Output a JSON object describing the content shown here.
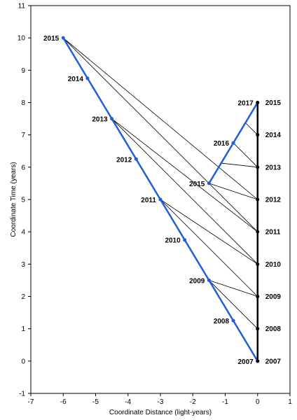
{
  "chart_data": {
    "type": "line",
    "xlabel": "Coordinate Distance (light-years)",
    "ylabel": "Coordinate Time (years)",
    "xlim": [
      -7,
      1
    ],
    "ylim": [
      -1,
      11
    ],
    "xticks": [
      -7,
      -6,
      -5,
      -4,
      -3,
      -2,
      -1,
      0,
      1
    ],
    "yticks": [
      -1,
      0,
      1,
      2,
      3,
      4,
      5,
      6,
      7,
      8,
      9,
      10,
      11
    ],
    "grid": false,
    "colors": {
      "blue": "#1f5fd6",
      "black": "#000000"
    },
    "series": [
      {
        "color": "#1f5fd6",
        "points": [
          {
            "x": 0,
            "y": 0,
            "label": "2007"
          },
          {
            "x": -0.75,
            "y": 1.25,
            "label": "2008"
          },
          {
            "x": -1.5,
            "y": 2.5,
            "label": "2009"
          },
          {
            "x": -2.25,
            "y": 3.75,
            "label": "2010"
          },
          {
            "x": -3,
            "y": 5,
            "label": "2011"
          },
          {
            "x": -3.75,
            "y": 6.25,
            "label": "2012"
          },
          {
            "x": -4.5,
            "y": 7.5,
            "label": "2013"
          },
          {
            "x": -5.25,
            "y": 8.75,
            "label": "2014"
          },
          {
            "x": -6,
            "y": 10,
            "label": "2015"
          }
        ]
      },
      {
        "color": "#1f5fd6",
        "points": [
          {
            "x": -1.5,
            "y": 5.5,
            "label": "2015"
          },
          {
            "x": -0.75,
            "y": 6.75,
            "label": "2016"
          },
          {
            "x": 0,
            "y": 8,
            "label": "2017"
          }
        ]
      },
      {
        "color": "#000000",
        "points": [
          {
            "x": 0,
            "y": 0,
            "label": "2007"
          },
          {
            "x": 0,
            "y": 1,
            "label": "2008"
          },
          {
            "x": 0,
            "y": 2,
            "label": "2009"
          },
          {
            "x": 0,
            "y": 3,
            "label": "2010"
          },
          {
            "x": 0,
            "y": 4,
            "label": "2011"
          },
          {
            "x": 0,
            "y": 5,
            "label": "2012"
          },
          {
            "x": 0,
            "y": 6,
            "label": "2013"
          },
          {
            "x": 0,
            "y": 7,
            "label": "2014"
          },
          {
            "x": 0,
            "y": 8,
            "label": "2015"
          }
        ]
      }
    ],
    "signal_lines": [
      {
        "from": [
          -6,
          10
        ],
        "to": [
          0,
          4
        ]
      },
      {
        "from": [
          -4.5,
          7.5
        ],
        "to": [
          0,
          3
        ]
      },
      {
        "from": [
          -3,
          5
        ],
        "to": [
          0,
          2
        ]
      },
      {
        "from": [
          -1.5,
          2.5
        ],
        "to": [
          0,
          1
        ]
      },
      {
        "from": [
          -6,
          10
        ],
        "to": [
          0,
          5
        ]
      },
      {
        "from": [
          -4.5,
          7.5
        ],
        "to": [
          0,
          4
        ]
      },
      {
        "from": [
          -3,
          5
        ],
        "to": [
          0,
          3
        ]
      },
      {
        "from": [
          -1.5,
          2.5
        ],
        "to": [
          0,
          2
        ]
      },
      {
        "from": [
          -1.5,
          5.5
        ],
        "to": [
          0,
          5
        ]
      },
      {
        "from": [
          -1.125,
          6.125
        ],
        "to": [
          0,
          6
        ]
      },
      {
        "from": [
          -0.75,
          6.75
        ],
        "to": [
          0,
          6
        ]
      },
      {
        "from": [
          -0.375,
          7.375
        ],
        "to": [
          0,
          7
        ]
      }
    ]
  }
}
